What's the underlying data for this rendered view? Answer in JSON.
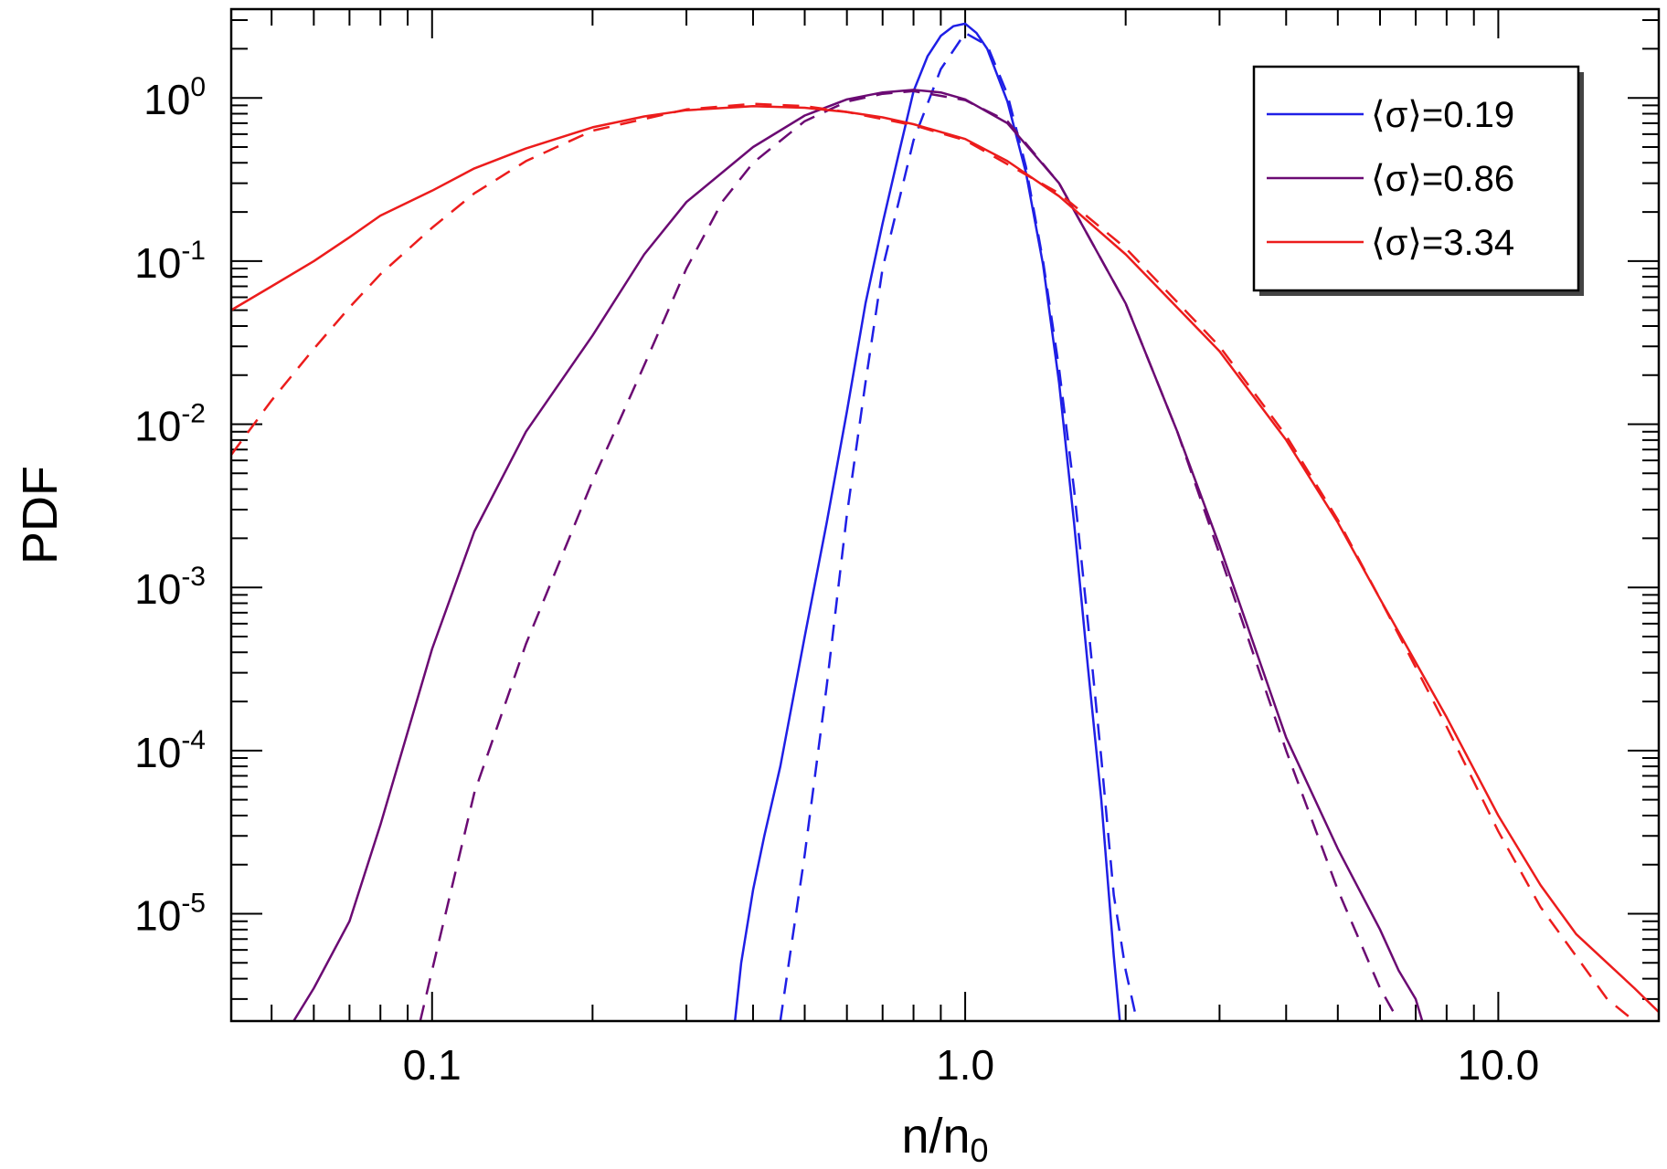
{
  "chart_data": {
    "type": "line",
    "title": "",
    "xlabel": {
      "base": "n/n",
      "subscript": "0"
    },
    "ylabel": "PDF",
    "x_scale": "log",
    "y_scale": "log",
    "xlim": [
      0.042,
      20
    ],
    "ylim": [
      2.2e-06,
      3.5
    ],
    "x_ticks": [
      {
        "value": 0.1,
        "label": "0.1"
      },
      {
        "value": 1.0,
        "label": "1.0"
      },
      {
        "value": 10.0,
        "label": "10.0"
      }
    ],
    "y_ticks": [
      {
        "value": 1,
        "base": "10",
        "exp": "0"
      },
      {
        "value": 0.1,
        "base": "10",
        "exp": "-1"
      },
      {
        "value": 0.01,
        "base": "10",
        "exp": "-2"
      },
      {
        "value": 0.001,
        "base": "10",
        "exp": "-3"
      },
      {
        "value": 0.0001,
        "base": "10",
        "exp": "-4"
      },
      {
        "value": 1e-05,
        "base": "10",
        "exp": "-5"
      }
    ],
    "grid": false,
    "legend_position": "top-right",
    "series": [
      {
        "name": "⟨σ⟩=0.19",
        "color": "#1f1fe6",
        "style": "solid",
        "x": [
          0.37,
          0.38,
          0.4,
          0.42,
          0.45,
          0.5,
          0.55,
          0.6,
          0.65,
          0.7,
          0.75,
          0.8,
          0.85,
          0.9,
          0.95,
          1.0,
          1.05,
          1.1,
          1.2,
          1.3,
          1.4,
          1.5,
          1.6,
          1.7,
          1.8,
          1.9,
          1.95
        ],
        "y": [
          2.2e-06,
          5e-06,
          1.4e-05,
          3e-05,
          8e-05,
          0.0005,
          0.0025,
          0.012,
          0.055,
          0.17,
          0.45,
          1.1,
          1.8,
          2.4,
          2.75,
          2.85,
          2.5,
          2.0,
          0.95,
          0.35,
          0.095,
          0.018,
          0.0025,
          0.00032,
          5e-05,
          5.5e-06,
          2.2e-06
        ]
      },
      {
        "name": "",
        "color": "#1f1fe6",
        "style": "dashed",
        "x": [
          0.45,
          0.5,
          0.55,
          0.6,
          0.65,
          0.7,
          0.8,
          0.9,
          1.0,
          1.1,
          1.2,
          1.3,
          1.4,
          1.5,
          1.6,
          1.7,
          1.8,
          1.9,
          2.0,
          2.1
        ],
        "y": [
          2.2e-06,
          2.3e-05,
          0.00025,
          0.0028,
          0.018,
          0.09,
          0.55,
          1.5,
          2.5,
          2.1,
          1.05,
          0.38,
          0.1,
          0.022,
          0.004,
          0.0006,
          9e-05,
          1.3e-05,
          4.5e-06,
          2.2e-06
        ]
      },
      {
        "name": "⟨σ⟩=0.86",
        "color": "#6b0a73",
        "style": "solid",
        "x": [
          0.055,
          0.06,
          0.07,
          0.08,
          0.1,
          0.12,
          0.15,
          0.2,
          0.25,
          0.3,
          0.4,
          0.5,
          0.6,
          0.7,
          0.8,
          0.9,
          1.0,
          1.2,
          1.5,
          2.0,
          2.5,
          3.0,
          4.0,
          5.0,
          6.0,
          6.5,
          7.0,
          7.2
        ],
        "y": [
          2.2e-06,
          3.5e-06,
          9e-06,
          3.5e-05,
          0.00042,
          0.0022,
          0.009,
          0.035,
          0.11,
          0.23,
          0.5,
          0.78,
          0.98,
          1.08,
          1.12,
          1.08,
          0.98,
          0.7,
          0.3,
          0.055,
          0.009,
          0.0018,
          0.00012,
          2.5e-05,
          8e-06,
          4.5e-06,
          3e-06,
          2.2e-06
        ]
      },
      {
        "name": "",
        "color": "#6b0a73",
        "style": "dashed",
        "x": [
          0.095,
          0.1,
          0.12,
          0.15,
          0.2,
          0.25,
          0.3,
          0.35,
          0.4,
          0.5,
          0.6,
          0.7,
          0.8,
          1.0,
          1.2,
          1.5,
          2.0,
          2.5,
          3.0,
          4.0,
          5.0,
          6.0,
          6.5
        ],
        "y": [
          2.2e-06,
          4.5e-06,
          5.5e-05,
          0.00045,
          0.0045,
          0.023,
          0.09,
          0.23,
          0.4,
          0.72,
          0.95,
          1.06,
          1.1,
          0.97,
          0.72,
          0.3,
          0.055,
          0.009,
          0.0016,
          0.0001,
          1.4e-05,
          3.5e-06,
          2.2e-06
        ]
      },
      {
        "name": "⟨σ⟩=3.34",
        "color": "#ec1c1c",
        "style": "solid",
        "x": [
          0.042,
          0.05,
          0.06,
          0.07,
          0.08,
          0.1,
          0.12,
          0.15,
          0.2,
          0.25,
          0.3,
          0.4,
          0.5,
          0.6,
          0.7,
          0.8,
          1.0,
          1.2,
          1.5,
          2.0,
          3.0,
          4.0,
          5.0,
          6.0,
          8.0,
          10.0,
          12.0,
          14.0,
          16.0,
          18.0,
          20.0
        ],
        "y": [
          0.05,
          0.07,
          0.1,
          0.14,
          0.19,
          0.27,
          0.37,
          0.49,
          0.66,
          0.77,
          0.84,
          0.89,
          0.87,
          0.82,
          0.76,
          0.69,
          0.56,
          0.41,
          0.25,
          0.11,
          0.028,
          0.008,
          0.0025,
          0.00085,
          0.00016,
          4e-05,
          1.5e-05,
          7.5e-06,
          5e-06,
          3.5e-06,
          2.5e-06
        ]
      },
      {
        "name": "",
        "color": "#ec1c1c",
        "style": "dashed",
        "x": [
          0.042,
          0.05,
          0.06,
          0.07,
          0.08,
          0.1,
          0.12,
          0.15,
          0.2,
          0.3,
          0.4,
          0.5,
          0.6,
          0.8,
          1.0,
          1.5,
          2.0,
          3.0,
          4.0,
          5.0,
          6.0,
          8.0,
          10.0,
          12.0,
          14.0,
          16.0,
          18.0,
          20.0
        ],
        "y": [
          0.0065,
          0.014,
          0.029,
          0.052,
          0.083,
          0.16,
          0.26,
          0.41,
          0.63,
          0.85,
          0.92,
          0.89,
          0.82,
          0.68,
          0.55,
          0.26,
          0.12,
          0.03,
          0.0085,
          0.0026,
          0.00085,
          0.00014,
          3.2e-05,
          1.1e-05,
          5.5e-06,
          3e-06,
          2.2e-06,
          1.6e-06
        ]
      }
    ]
  }
}
